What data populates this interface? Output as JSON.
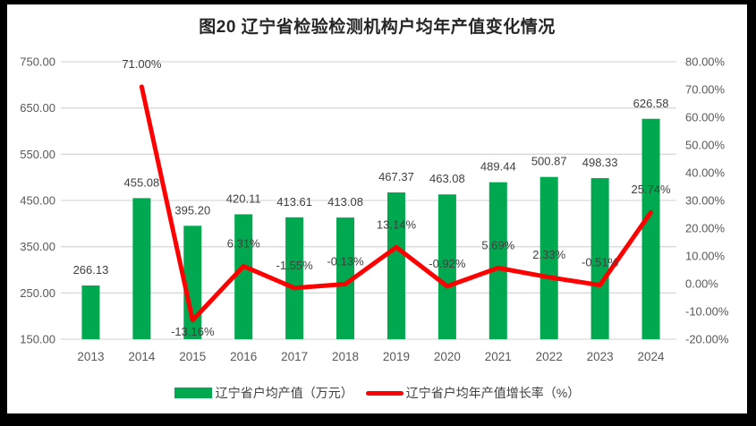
{
  "title": "图20 辽宁省检验检测机构户均年产值变化情况",
  "colors": {
    "bar_green": "#00A84F",
    "line_red": "#FF0000",
    "gridline": "#D9D9D9",
    "axis_text": "#595959",
    "data_label": "#404040",
    "title_text": "#262626",
    "frame": "#000000",
    "background": "#FFFFFF"
  },
  "chart_data": {
    "type": "combo",
    "title": "图20 辽宁省检验检测机构户均年产值变化情况",
    "categories": [
      "2013",
      "2014",
      "2015",
      "2016",
      "2017",
      "2018",
      "2019",
      "2020",
      "2021",
      "2022",
      "2023",
      "2024"
    ],
    "series": [
      {
        "name": "辽宁省户均产值（万元）",
        "type": "bar",
        "axis": "left",
        "color": "#00A84F",
        "values": [
          266.13,
          455.08,
          395.2,
          420.11,
          413.61,
          413.08,
          467.37,
          463.08,
          489.44,
          500.87,
          498.33,
          626.58
        ],
        "labels": [
          "266.13",
          "455.08",
          "395.20",
          "420.11",
          "413.61",
          "413.08",
          "467.37",
          "463.08",
          "489.44",
          "500.87",
          "498.33",
          "626.58"
        ]
      },
      {
        "name": "辽宁省户均年产值增长率（%）",
        "type": "line",
        "axis": "right",
        "color": "#FF0000",
        "values": [
          null,
          71.0,
          -13.16,
          6.31,
          -1.55,
          -0.13,
          13.14,
          -0.92,
          5.69,
          2.33,
          -0.51,
          25.74
        ],
        "labels": [
          null,
          "71.00%",
          "-13.16%",
          "6.31%",
          "-1.55%",
          "-0.13%",
          "13.14%",
          "-0.92%",
          "5.69%",
          "2.33%",
          "-0.51%",
          "25.74%"
        ],
        "label_positions": [
          null,
          "above",
          "below",
          "above",
          "above",
          "above",
          "above",
          "above",
          "above",
          "above",
          "above",
          "above"
        ]
      }
    ],
    "left_axis": {
      "min": 150,
      "max": 750,
      "step": 100,
      "tick_labels": [
        "750.00",
        "650.00",
        "550.00",
        "450.00",
        "350.00",
        "250.00",
        "150.00"
      ]
    },
    "right_axis": {
      "min": -20,
      "max": 80,
      "step": 10,
      "tick_labels": [
        "80.00%",
        "70.00%",
        "60.00%",
        "50.00%",
        "40.00%",
        "30.00%",
        "20.00%",
        "10.00%",
        "0.00%",
        "-10.00%",
        "-20.00%"
      ]
    },
    "grid": true,
    "legend_position": "bottom"
  }
}
